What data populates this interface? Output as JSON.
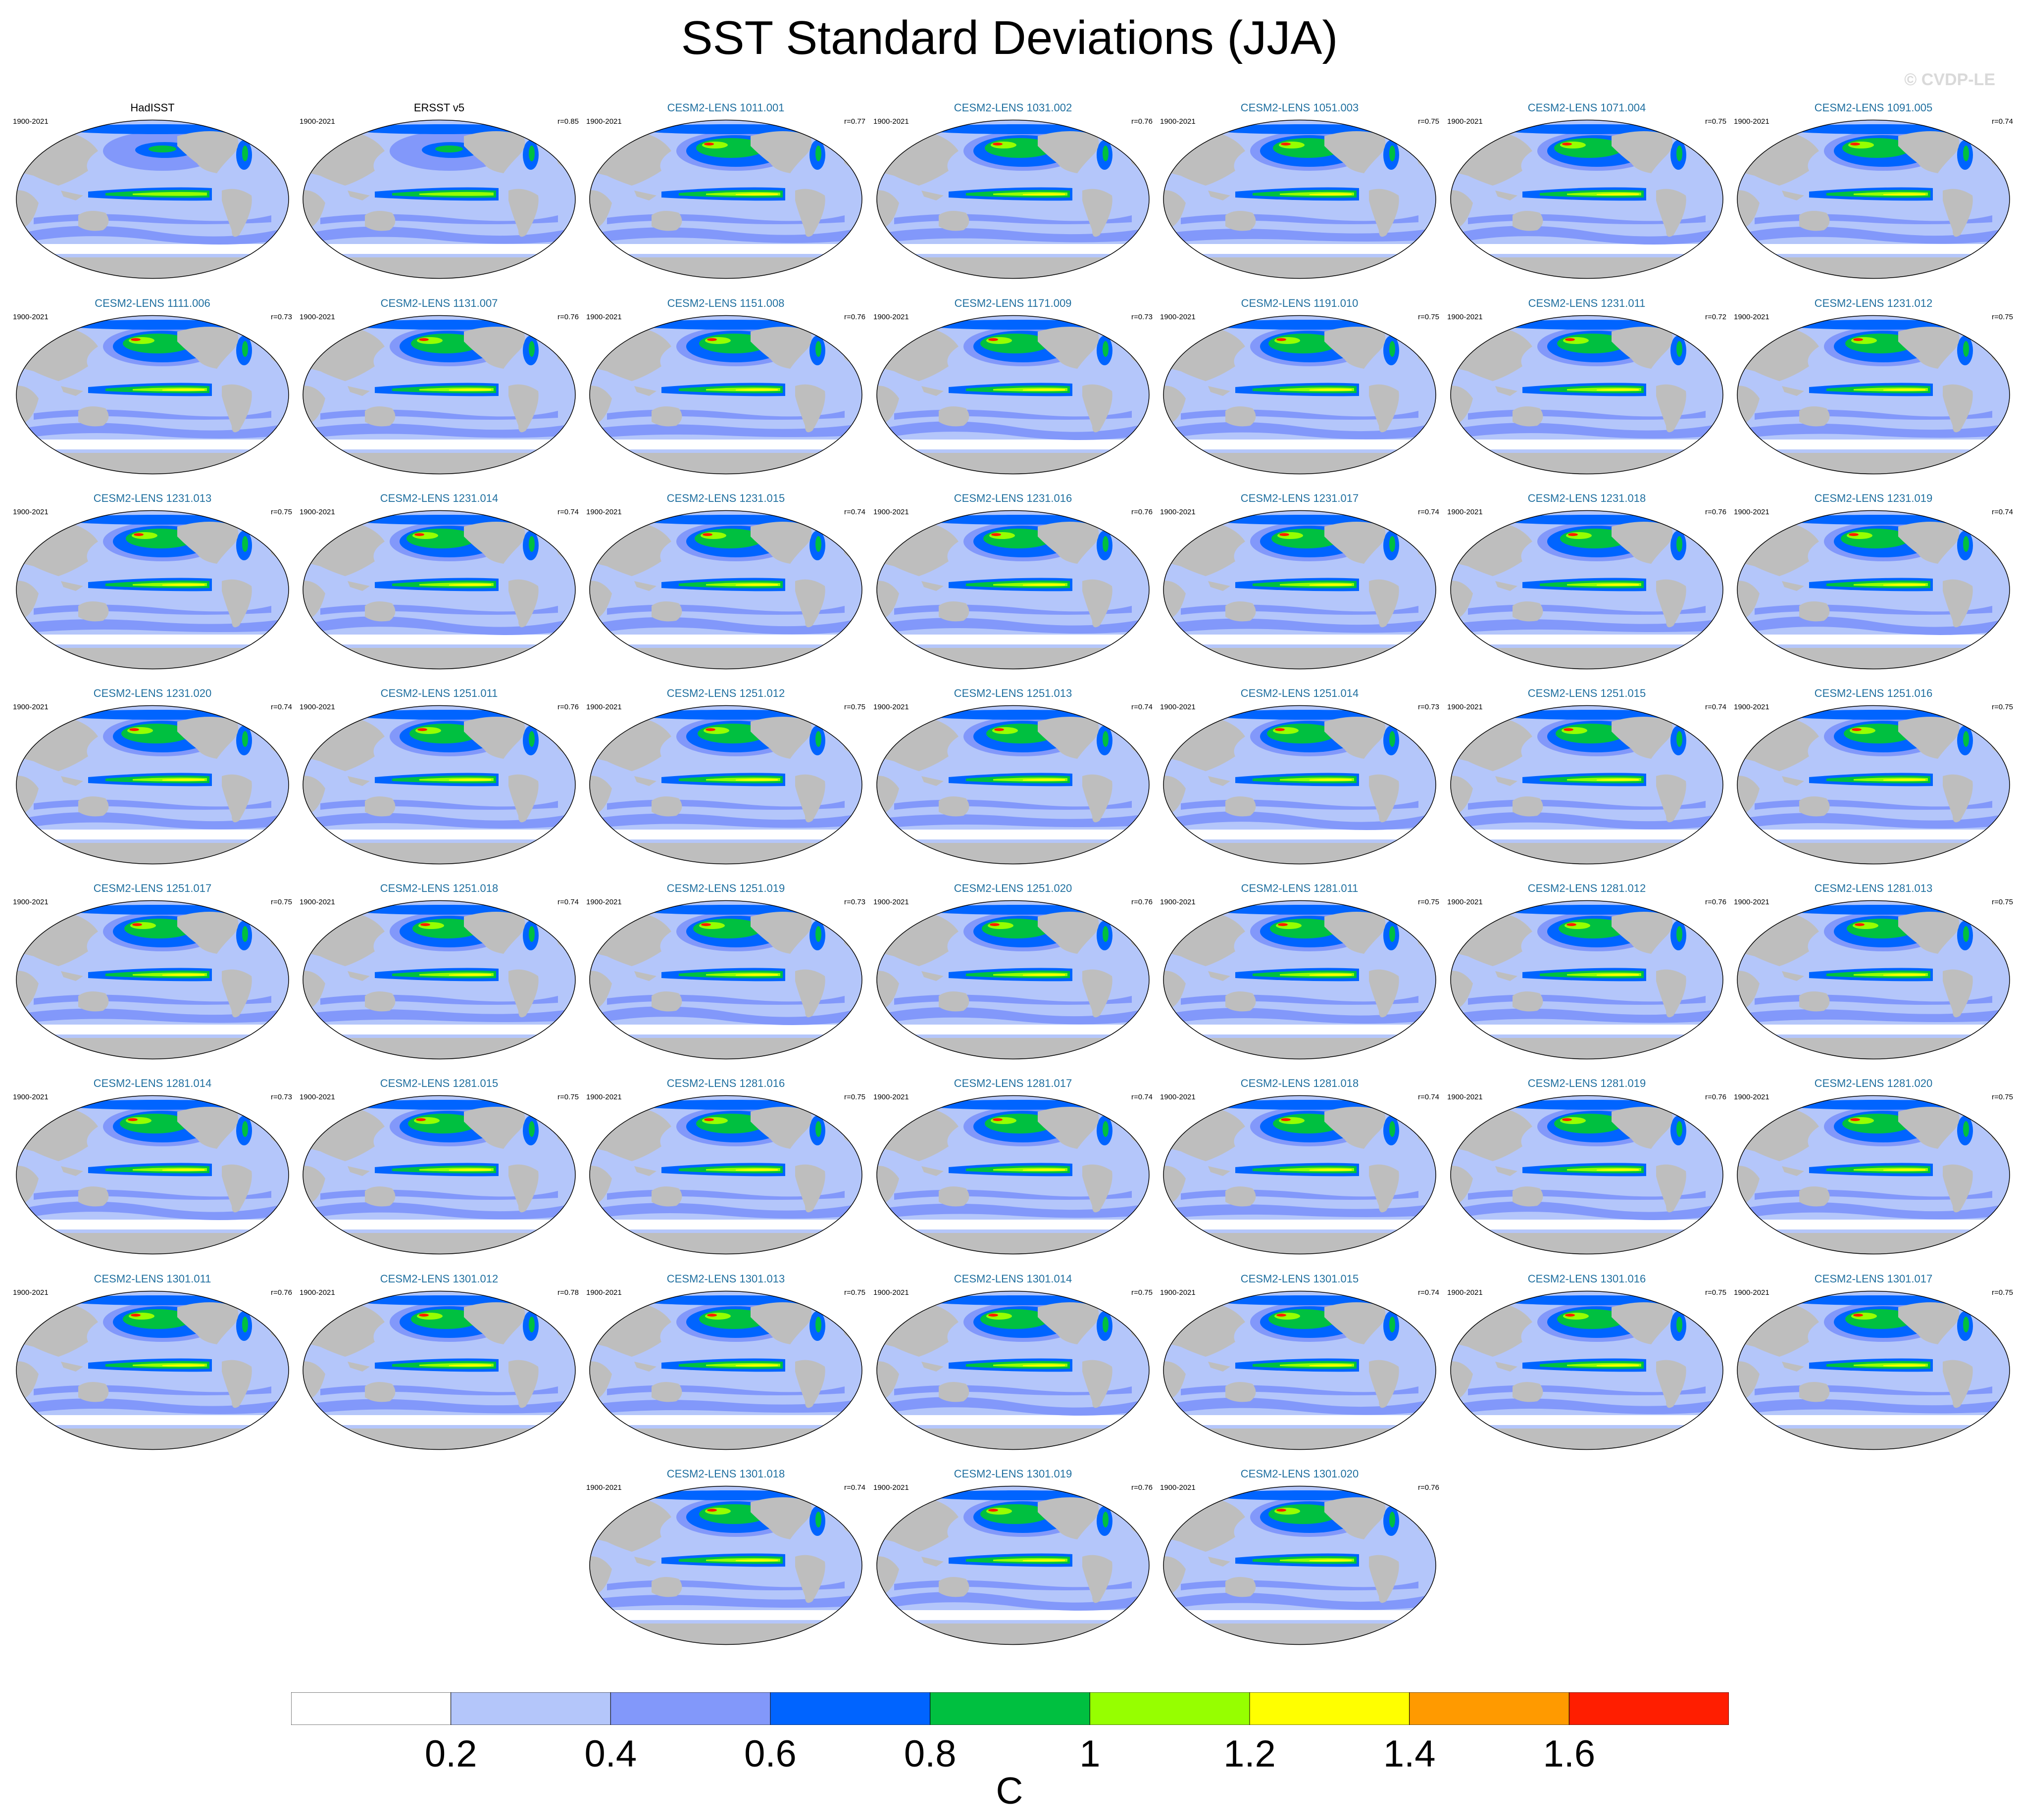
{
  "title": "SST Standard Deviations (JJA)",
  "watermark": "© CVDP-LE",
  "period": "1900-2021",
  "panels": [
    {
      "title": "HadISST",
      "corr": "",
      "kind": "obs"
    },
    {
      "title": "ERSST v5",
      "corr": "r=0.85",
      "kind": "obs"
    },
    {
      "title": "CESM2-LENS 1011.001",
      "corr": "r=0.77",
      "kind": "model"
    },
    {
      "title": "CESM2-LENS 1031.002",
      "corr": "r=0.76",
      "kind": "model"
    },
    {
      "title": "CESM2-LENS 1051.003",
      "corr": "r=0.75",
      "kind": "model"
    },
    {
      "title": "CESM2-LENS 1071.004",
      "corr": "r=0.75",
      "kind": "model"
    },
    {
      "title": "CESM2-LENS 1091.005",
      "corr": "r=0.74",
      "kind": "model"
    },
    {
      "title": "CESM2-LENS 1111.006",
      "corr": "r=0.73",
      "kind": "model"
    },
    {
      "title": "CESM2-LENS 1131.007",
      "corr": "r=0.76",
      "kind": "model"
    },
    {
      "title": "CESM2-LENS 1151.008",
      "corr": "r=0.76",
      "kind": "model"
    },
    {
      "title": "CESM2-LENS 1171.009",
      "corr": "r=0.73",
      "kind": "model"
    },
    {
      "title": "CESM2-LENS 1191.010",
      "corr": "r=0.75",
      "kind": "model"
    },
    {
      "title": "CESM2-LENS 1231.011",
      "corr": "r=0.72",
      "kind": "model"
    },
    {
      "title": "CESM2-LENS 1231.012",
      "corr": "r=0.75",
      "kind": "model"
    },
    {
      "title": "CESM2-LENS 1231.013",
      "corr": "r=0.75",
      "kind": "model"
    },
    {
      "title": "CESM2-LENS 1231.014",
      "corr": "r=0.74",
      "kind": "model"
    },
    {
      "title": "CESM2-LENS 1231.015",
      "corr": "r=0.74",
      "kind": "model"
    },
    {
      "title": "CESM2-LENS 1231.016",
      "corr": "r=0.76",
      "kind": "model"
    },
    {
      "title": "CESM2-LENS 1231.017",
      "corr": "r=0.74",
      "kind": "model"
    },
    {
      "title": "CESM2-LENS 1231.018",
      "corr": "r=0.76",
      "kind": "model"
    },
    {
      "title": "CESM2-LENS 1231.019",
      "corr": "r=0.74",
      "kind": "model"
    },
    {
      "title": "CESM2-LENS 1231.020",
      "corr": "r=0.74",
      "kind": "model"
    },
    {
      "title": "CESM2-LENS 1251.011",
      "corr": "r=0.76",
      "kind": "model"
    },
    {
      "title": "CESM2-LENS 1251.012",
      "corr": "r=0.75",
      "kind": "model"
    },
    {
      "title": "CESM2-LENS 1251.013",
      "corr": "r=0.74",
      "kind": "model"
    },
    {
      "title": "CESM2-LENS 1251.014",
      "corr": "r=0.73",
      "kind": "model"
    },
    {
      "title": "CESM2-LENS 1251.015",
      "corr": "r=0.74",
      "kind": "model"
    },
    {
      "title": "CESM2-LENS 1251.016",
      "corr": "r=0.75",
      "kind": "model"
    },
    {
      "title": "CESM2-LENS 1251.017",
      "corr": "r=0.75",
      "kind": "model"
    },
    {
      "title": "CESM2-LENS 1251.018",
      "corr": "r=0.74",
      "kind": "model"
    },
    {
      "title": "CESM2-LENS 1251.019",
      "corr": "r=0.73",
      "kind": "model"
    },
    {
      "title": "CESM2-LENS 1251.020",
      "corr": "r=0.76",
      "kind": "model"
    },
    {
      "title": "CESM2-LENS 1281.011",
      "corr": "r=0.75",
      "kind": "model"
    },
    {
      "title": "CESM2-LENS 1281.012",
      "corr": "r=0.76",
      "kind": "model"
    },
    {
      "title": "CESM2-LENS 1281.013",
      "corr": "r=0.75",
      "kind": "model"
    },
    {
      "title": "CESM2-LENS 1281.014",
      "corr": "r=0.73",
      "kind": "model"
    },
    {
      "title": "CESM2-LENS 1281.015",
      "corr": "r=0.75",
      "kind": "model"
    },
    {
      "title": "CESM2-LENS 1281.016",
      "corr": "r=0.75",
      "kind": "model"
    },
    {
      "title": "CESM2-LENS 1281.017",
      "corr": "r=0.74",
      "kind": "model"
    },
    {
      "title": "CESM2-LENS 1281.018",
      "corr": "r=0.74",
      "kind": "model"
    },
    {
      "title": "CESM2-LENS 1281.019",
      "corr": "r=0.76",
      "kind": "model"
    },
    {
      "title": "CESM2-LENS 1281.020",
      "corr": "r=0.75",
      "kind": "model"
    },
    {
      "title": "CESM2-LENS 1301.011",
      "corr": "r=0.76",
      "kind": "model"
    },
    {
      "title": "CESM2-LENS 1301.012",
      "corr": "r=0.78",
      "kind": "model"
    },
    {
      "title": "CESM2-LENS 1301.013",
      "corr": "r=0.75",
      "kind": "model"
    },
    {
      "title": "CESM2-LENS 1301.014",
      "corr": "r=0.75",
      "kind": "model"
    },
    {
      "title": "CESM2-LENS 1301.015",
      "corr": "r=0.74",
      "kind": "model"
    },
    {
      "title": "CESM2-LENS 1301.016",
      "corr": "r=0.75",
      "kind": "model"
    },
    {
      "title": "CESM2-LENS 1301.017",
      "corr": "r=0.75",
      "kind": "model"
    },
    {
      "title": "CESM2-LENS 1301.018",
      "corr": "r=0.74",
      "kind": "model"
    },
    {
      "title": "CESM2-LENS 1301.019",
      "corr": "r=0.76",
      "kind": "model"
    },
    {
      "title": "CESM2-LENS 1301.020",
      "corr": "r=0.76",
      "kind": "model"
    }
  ],
  "colorbar": {
    "bins": [
      {
        "color": "#ffffff"
      },
      {
        "color": "#b4c6fa"
      },
      {
        "color": "#8298fa"
      },
      {
        "color": "#0064ff"
      },
      {
        "color": "#00c040"
      },
      {
        "color": "#96ff00"
      },
      {
        "color": "#ffff00"
      },
      {
        "color": "#ff9a00"
      },
      {
        "color": "#ff1e00"
      }
    ],
    "labels": [
      "0.2",
      "0.4",
      "0.6",
      "0.8",
      "1",
      "1.2",
      "1.4",
      "1.6"
    ],
    "units": "C"
  },
  "colors": {
    "land": "#bebebe",
    "obs_title": "#000000",
    "model_title": "#1f6f9f",
    "watermark": "#d9d9d9"
  }
}
